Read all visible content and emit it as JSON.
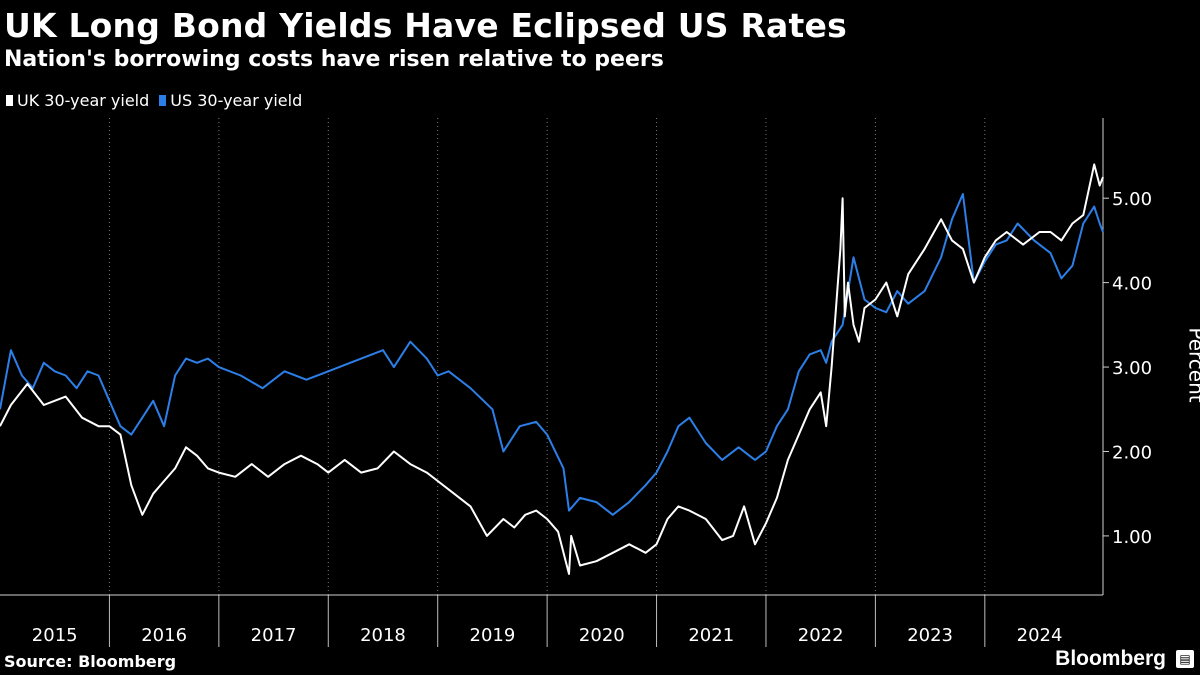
{
  "header": {
    "title": "UK Long Bond Yields Have Eclipsed US Rates",
    "subtitle": "Nation's borrowing costs have risen relative to peers"
  },
  "footer": {
    "source": "Source: Bloomberg",
    "brand": "Bloomberg"
  },
  "chart_data": {
    "type": "line",
    "title": "UK Long Bond Yields Have Eclipsed US Rates",
    "subtitle": "Nation's borrowing costs have risen relative to peers",
    "xlabel": "",
    "ylabel": "Percent",
    "x_range": [
      2015.0,
      2025.08
    ],
    "ylim": [
      0.3,
      5.95
    ],
    "y_ticks": [
      1.0,
      2.0,
      3.0,
      4.0,
      5.0
    ],
    "y_tick_labels": [
      "1.00",
      "2.00",
      "3.00",
      "4.00",
      "5.00"
    ],
    "x_ticks": [
      2015,
      2016,
      2017,
      2018,
      2019,
      2020,
      2021,
      2022,
      2023,
      2024
    ],
    "x_tick_labels": [
      "2015",
      "2016",
      "2017",
      "2018",
      "2019",
      "2020",
      "2021",
      "2022",
      "2023",
      "2024"
    ],
    "y_axis_position": "right",
    "grid": "vertical-dotted",
    "legend_position": "top-left",
    "series": [
      {
        "name": "UK 30-year yield",
        "color": "#ffffff",
        "x": [
          2015.0,
          2015.1,
          2015.25,
          2015.4,
          2015.5,
          2015.6,
          2015.75,
          2015.9,
          2016.0,
          2016.1,
          2016.2,
          2016.3,
          2016.4,
          2016.5,
          2016.6,
          2016.7,
          2016.8,
          2016.9,
          2017.0,
          2017.15,
          2017.3,
          2017.45,
          2017.6,
          2017.75,
          2017.9,
          2018.0,
          2018.15,
          2018.3,
          2018.45,
          2018.6,
          2018.75,
          2018.9,
          2019.0,
          2019.15,
          2019.3,
          2019.45,
          2019.6,
          2019.7,
          2019.8,
          2019.9,
          2020.0,
          2020.1,
          2020.18,
          2020.2,
          2020.22,
          2020.3,
          2020.45,
          2020.6,
          2020.75,
          2020.9,
          2021.0,
          2021.1,
          2021.2,
          2021.3,
          2021.45,
          2021.6,
          2021.7,
          2021.8,
          2021.9,
          2022.0,
          2022.1,
          2022.2,
          2022.3,
          2022.4,
          2022.5,
          2022.55,
          2022.6,
          2022.68,
          2022.7,
          2022.72,
          2022.75,
          2022.8,
          2022.85,
          2022.9,
          2023.0,
          2023.1,
          2023.2,
          2023.3,
          2023.45,
          2023.6,
          2023.7,
          2023.8,
          2023.9,
          2024.0,
          2024.1,
          2024.2,
          2024.35,
          2024.5,
          2024.6,
          2024.7,
          2024.8,
          2024.9,
          2025.0,
          2025.05,
          2025.08
        ],
        "values": [
          2.3,
          2.55,
          2.8,
          2.55,
          2.6,
          2.65,
          2.4,
          2.3,
          2.3,
          2.2,
          1.6,
          1.25,
          1.5,
          1.65,
          1.8,
          2.05,
          1.95,
          1.8,
          1.75,
          1.7,
          1.85,
          1.7,
          1.85,
          1.95,
          1.85,
          1.75,
          1.9,
          1.75,
          1.8,
          2.0,
          1.85,
          1.75,
          1.65,
          1.5,
          1.35,
          1.0,
          1.2,
          1.1,
          1.25,
          1.3,
          1.2,
          1.05,
          0.65,
          0.55,
          1.0,
          0.65,
          0.7,
          0.8,
          0.9,
          0.8,
          0.9,
          1.2,
          1.35,
          1.3,
          1.2,
          0.95,
          1.0,
          1.35,
          0.9,
          1.15,
          1.45,
          1.9,
          2.2,
          2.5,
          2.7,
          2.3,
          3.0,
          4.4,
          5.0,
          3.6,
          4.0,
          3.5,
          3.3,
          3.7,
          3.8,
          4.0,
          3.6,
          4.1,
          4.4,
          4.75,
          4.5,
          4.4,
          4.0,
          4.3,
          4.5,
          4.6,
          4.45,
          4.6,
          4.6,
          4.5,
          4.7,
          4.8,
          5.4,
          5.15,
          5.25
        ]
      },
      {
        "name": "US 30-year yield",
        "color": "#2d7fe8",
        "x": [
          2015.0,
          2015.1,
          2015.2,
          2015.3,
          2015.4,
          2015.5,
          2015.6,
          2015.7,
          2015.8,
          2015.9,
          2016.0,
          2016.1,
          2016.2,
          2016.3,
          2016.4,
          2016.5,
          2016.6,
          2016.7,
          2016.8,
          2016.9,
          2017.0,
          2017.2,
          2017.4,
          2017.6,
          2017.8,
          2018.0,
          2018.2,
          2018.4,
          2018.5,
          2018.6,
          2018.75,
          2018.9,
          2019.0,
          2019.1,
          2019.3,
          2019.5,
          2019.6,
          2019.75,
          2019.9,
          2020.0,
          2020.15,
          2020.2,
          2020.3,
          2020.45,
          2020.6,
          2020.75,
          2020.9,
          2021.0,
          2021.1,
          2021.2,
          2021.3,
          2021.45,
          2021.6,
          2021.75,
          2021.9,
          2022.0,
          2022.1,
          2022.2,
          2022.3,
          2022.4,
          2022.5,
          2022.55,
          2022.6,
          2022.7,
          2022.8,
          2022.9,
          2023.0,
          2023.1,
          2023.2,
          2023.3,
          2023.45,
          2023.6,
          2023.7,
          2023.8,
          2023.9,
          2024.0,
          2024.1,
          2024.2,
          2024.3,
          2024.45,
          2024.6,
          2024.7,
          2024.8,
          2024.9,
          2025.0,
          2025.05,
          2025.08
        ],
        "values": [
          2.5,
          3.2,
          2.9,
          2.75,
          3.05,
          2.95,
          2.9,
          2.75,
          2.95,
          2.9,
          2.6,
          2.3,
          2.2,
          2.4,
          2.6,
          2.3,
          2.9,
          3.1,
          3.05,
          3.1,
          3.0,
          2.9,
          2.75,
          2.95,
          2.85,
          2.95,
          3.05,
          3.15,
          3.2,
          3.0,
          3.3,
          3.1,
          2.9,
          2.95,
          2.75,
          2.5,
          2.0,
          2.3,
          2.35,
          2.2,
          1.8,
          1.3,
          1.45,
          1.4,
          1.25,
          1.4,
          1.6,
          1.75,
          2.0,
          2.3,
          2.4,
          2.1,
          1.9,
          2.05,
          1.9,
          2.0,
          2.3,
          2.5,
          2.95,
          3.15,
          3.2,
          3.05,
          3.3,
          3.5,
          4.3,
          3.8,
          3.7,
          3.65,
          3.9,
          3.75,
          3.9,
          4.3,
          4.75,
          5.05,
          4.0,
          4.25,
          4.45,
          4.5,
          4.7,
          4.5,
          4.35,
          4.05,
          4.2,
          4.7,
          4.9,
          4.7,
          4.6
        ]
      }
    ]
  }
}
